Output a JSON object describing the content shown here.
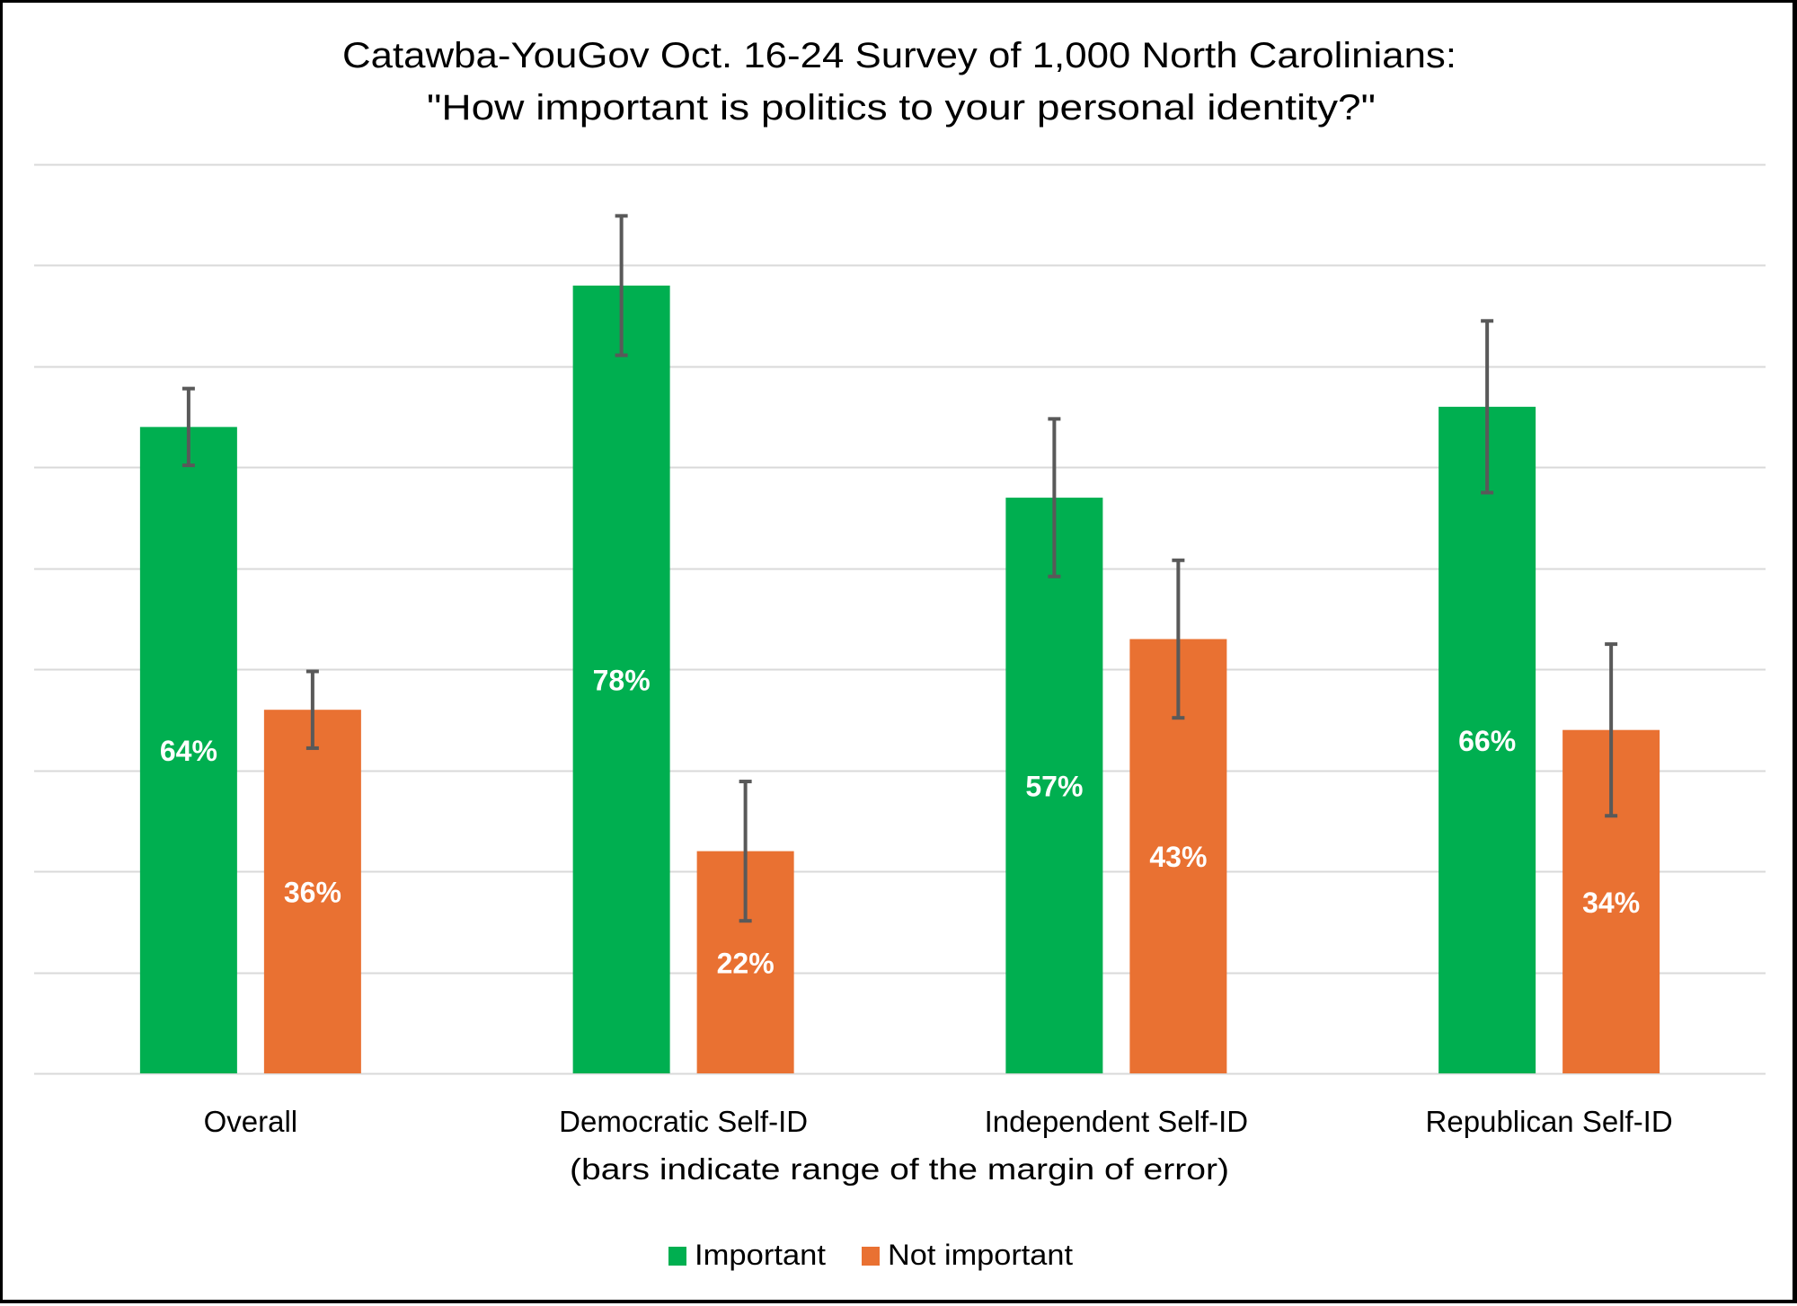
{
  "chart_data": {
    "type": "bar",
    "title": "Catawba-YouGov Oct. 16-24 Survey of 1,000 North Carolinians:",
    "subtitle": "\"How important is politics to your personal identity?\"",
    "xlabel": "(bars indicate range of the margin of error)",
    "ylabel": "",
    "ylim": [
      0,
      90
    ],
    "grid": true,
    "gridline_step": 10,
    "legend_position": "bottom",
    "categories": [
      "Overall",
      "Democratic Self-ID",
      "Independent Self-ID",
      "Republican Self-ID"
    ],
    "series": [
      {
        "name": "Important",
        "color": "#00AF50",
        "values": [
          64,
          78,
          57,
          66
        ],
        "labels": [
          "64%",
          "78%",
          "57%",
          "66%"
        ],
        "error_low": [
          60.2,
          71.1,
          49.2,
          57.5
        ],
        "error_high": [
          67.8,
          84.9,
          64.8,
          74.5
        ]
      },
      {
        "name": "Not important",
        "color": "#E97132",
        "values": [
          36,
          22,
          43,
          34
        ],
        "labels": [
          "36%",
          "22%",
          "43%",
          "34%"
        ],
        "error_low": [
          32.2,
          15.1,
          35.2,
          25.5
        ],
        "error_high": [
          39.8,
          28.9,
          50.8,
          42.5
        ]
      }
    ],
    "error_bar_color": "#595959",
    "gridline_color": "#D9D9D9"
  }
}
